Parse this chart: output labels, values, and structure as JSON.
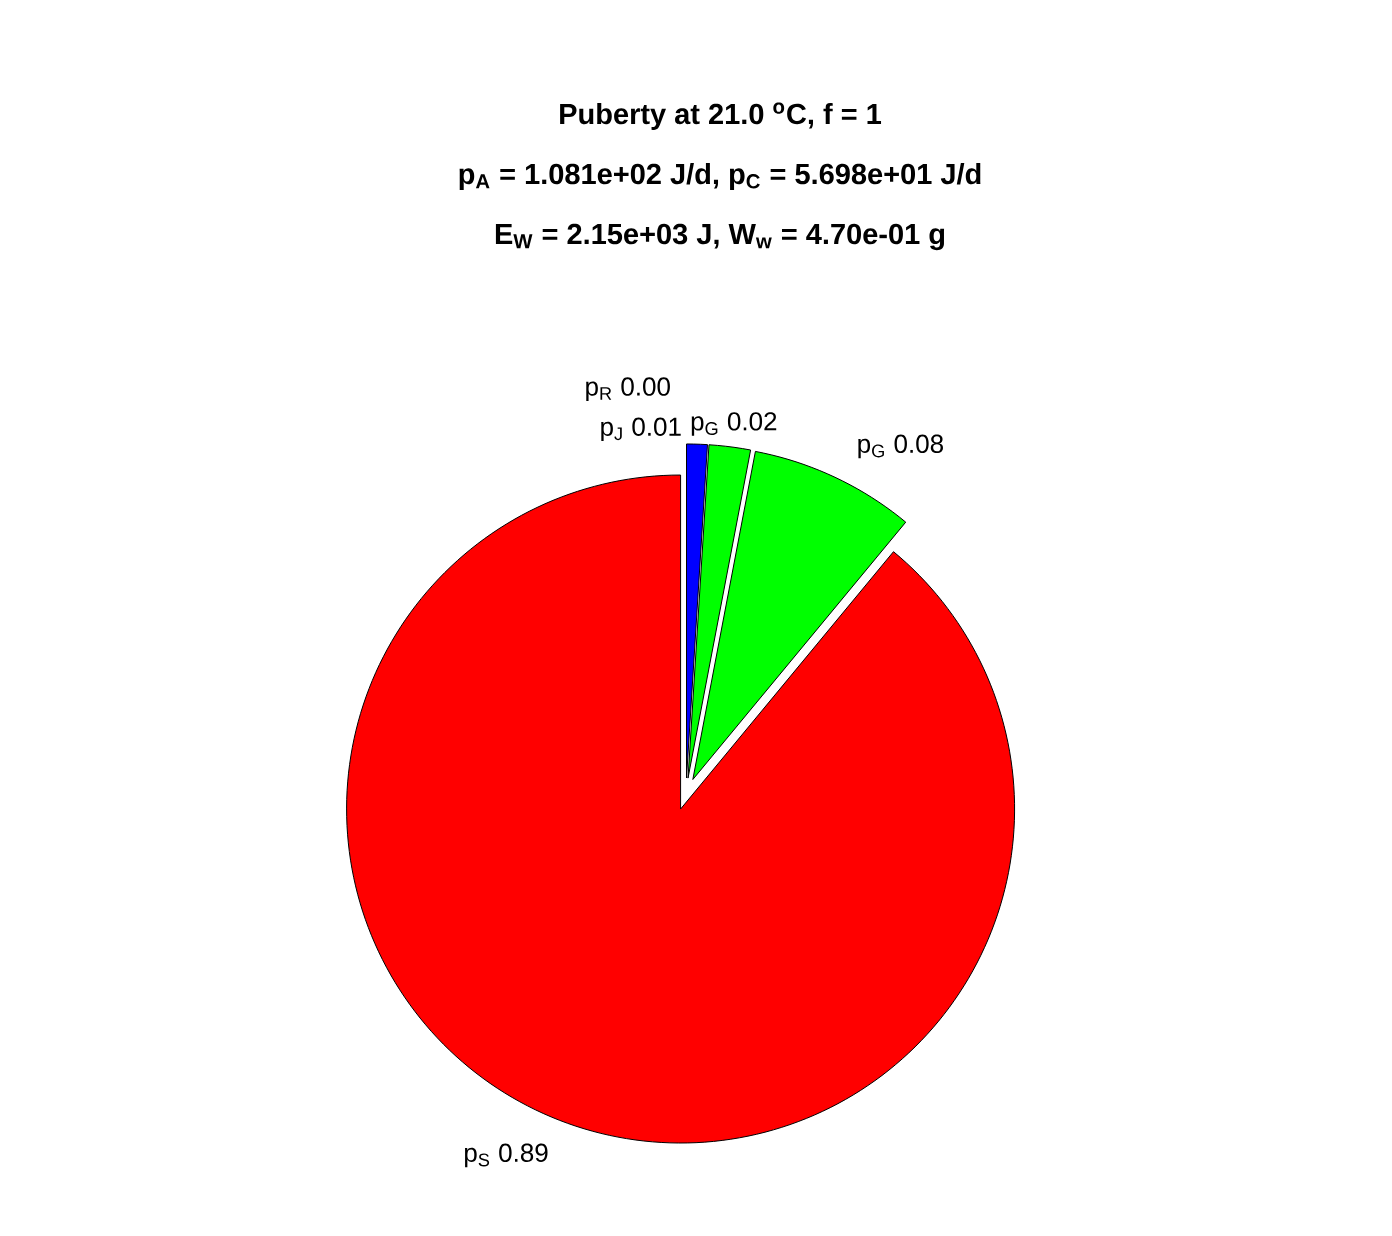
{
  "chart_data": {
    "type": "pie",
    "title": "Puberty at 21.0 $^{o}$C, f = 1",
    "subtitle": "p$_{A}$ = 1.081e+02 J/d,  p$_{C}$ = 5.698e+01 J/d",
    "annotations": [
      "E$_{W}$ = 2.15e+03 J, W$_{w}$ = 4.70e-01 g"
    ],
    "categories": [
      "p$_{R}$",
      "p$_{J}$",
      "p$_{G}$",
      "p$_{G}$",
      "p$_{S}$"
    ],
    "values": [
      0.0,
      0.01,
      0.02,
      0.08,
      0.89
    ],
    "value_labels": [
      "0.00",
      "0.01",
      "0.02",
      "0.08",
      "0.89"
    ],
    "colors": [
      "#0000ff",
      "#0000ff",
      "#00ff00",
      "#00ff00",
      "#ff0000"
    ]
  }
}
